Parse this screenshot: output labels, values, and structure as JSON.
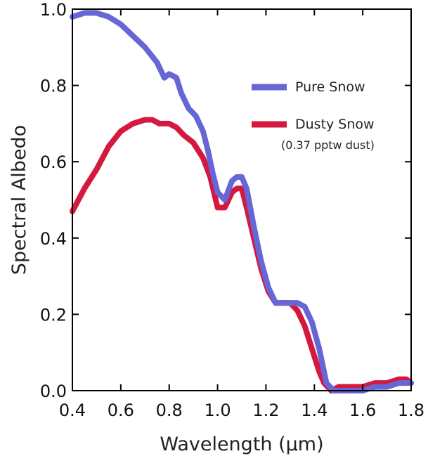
{
  "chart_data": {
    "type": "line",
    "xlabel": "Wavelength (μm)",
    "ylabel": "Spectral Albedo",
    "xlim": [
      0.4,
      1.8
    ],
    "ylim": [
      0.0,
      1.0
    ],
    "x_ticks": [
      "0.4",
      "0.6",
      "0.8",
      "1.0",
      "1.2",
      "1.4",
      "1.6",
      "1.8"
    ],
    "y_ticks": [
      "0.0",
      "0.2",
      "0.4",
      "0.6",
      "0.8",
      "1.0"
    ],
    "legend_position": "top-right",
    "grid": false,
    "series": [
      {
        "name": "Pure Snow",
        "color": "#6666d6",
        "points": [
          [
            0.4,
            0.98
          ],
          [
            0.45,
            0.99
          ],
          [
            0.5,
            0.99
          ],
          [
            0.55,
            0.98
          ],
          [
            0.6,
            0.96
          ],
          [
            0.65,
            0.93
          ],
          [
            0.7,
            0.9
          ],
          [
            0.75,
            0.86
          ],
          [
            0.78,
            0.82
          ],
          [
            0.8,
            0.83
          ],
          [
            0.83,
            0.82
          ],
          [
            0.85,
            0.78
          ],
          [
            0.88,
            0.74
          ],
          [
            0.91,
            0.72
          ],
          [
            0.94,
            0.68
          ],
          [
            0.96,
            0.63
          ],
          [
            0.98,
            0.57
          ],
          [
            1.0,
            0.52
          ],
          [
            1.03,
            0.5
          ],
          [
            1.06,
            0.55
          ],
          [
            1.08,
            0.56
          ],
          [
            1.1,
            0.56
          ],
          [
            1.12,
            0.53
          ],
          [
            1.15,
            0.43
          ],
          [
            1.18,
            0.34
          ],
          [
            1.21,
            0.27
          ],
          [
            1.24,
            0.23
          ],
          [
            1.27,
            0.23
          ],
          [
            1.3,
            0.23
          ],
          [
            1.33,
            0.23
          ],
          [
            1.36,
            0.22
          ],
          [
            1.39,
            0.18
          ],
          [
            1.42,
            0.11
          ],
          [
            1.45,
            0.02
          ],
          [
            1.48,
            0.0
          ],
          [
            1.52,
            0.0
          ],
          [
            1.56,
            0.0
          ],
          [
            1.6,
            0.0
          ],
          [
            1.65,
            0.01
          ],
          [
            1.7,
            0.01
          ],
          [
            1.75,
            0.02
          ],
          [
            1.78,
            0.02
          ],
          [
            1.8,
            0.02
          ]
        ]
      },
      {
        "name": "Dusty Snow",
        "note": "(0.37 pptw dust)",
        "color": "#d4193f",
        "points": [
          [
            0.4,
            0.47
          ],
          [
            0.45,
            0.53
          ],
          [
            0.5,
            0.58
          ],
          [
            0.55,
            0.64
          ],
          [
            0.6,
            0.68
          ],
          [
            0.65,
            0.7
          ],
          [
            0.7,
            0.71
          ],
          [
            0.73,
            0.71
          ],
          [
            0.76,
            0.7
          ],
          [
            0.8,
            0.7
          ],
          [
            0.83,
            0.69
          ],
          [
            0.86,
            0.67
          ],
          [
            0.9,
            0.65
          ],
          [
            0.94,
            0.61
          ],
          [
            0.97,
            0.56
          ],
          [
            1.0,
            0.48
          ],
          [
            1.03,
            0.48
          ],
          [
            1.06,
            0.52
          ],
          [
            1.08,
            0.53
          ],
          [
            1.1,
            0.53
          ],
          [
            1.12,
            0.48
          ],
          [
            1.15,
            0.4
          ],
          [
            1.18,
            0.32
          ],
          [
            1.21,
            0.26
          ],
          [
            1.24,
            0.23
          ],
          [
            1.27,
            0.23
          ],
          [
            1.3,
            0.23
          ],
          [
            1.33,
            0.21
          ],
          [
            1.36,
            0.17
          ],
          [
            1.39,
            0.11
          ],
          [
            1.42,
            0.05
          ],
          [
            1.44,
            0.02
          ],
          [
            1.47,
            0.0
          ],
          [
            1.5,
            0.01
          ],
          [
            1.55,
            0.01
          ],
          [
            1.6,
            0.01
          ],
          [
            1.65,
            0.02
          ],
          [
            1.7,
            0.02
          ],
          [
            1.75,
            0.03
          ],
          [
            1.78,
            0.03
          ],
          [
            1.8,
            0.02
          ]
        ]
      }
    ]
  }
}
